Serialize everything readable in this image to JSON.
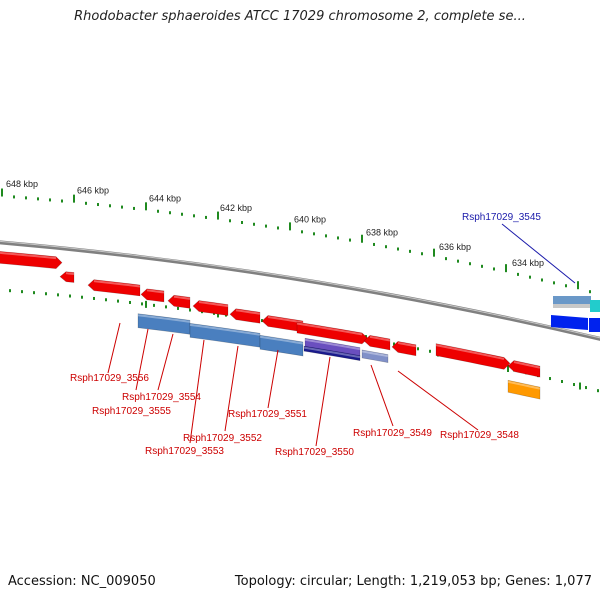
{
  "title": "Rhodobacter sphaeroides ATCC 17029 chromosome 2, complete se...",
  "footer": {
    "accession": "Accession: NC_009050",
    "summary": "Topology: circular; Length: 1,219,053 bp; Genes: 1,077"
  },
  "colors": {
    "ruler_tick": "#1f8a1f",
    "backbone": "#808080",
    "red_gene": "#ee0000",
    "blue_gene": "#4a7fbf",
    "purple_gene": "#6a4fbf",
    "navy_gene": "#1a1a8c",
    "bright_blue_gene": "#0022ee",
    "cyan_gene": "#22cccc",
    "orange_gene": "#ff9900",
    "label_red": "#cc0000",
    "label_blue": "#1a1aaa"
  },
  "ruler_labels": [
    "648 kbp",
    "646 kbp",
    "644 kbp",
    "642 kbp",
    "640 kbp",
    "638 kbp",
    "636 kbp",
    "634 kbp"
  ],
  "gene_labels": {
    "upper": [
      "Rsph17029_3545"
    ],
    "lower": [
      "Rsph17029_3556",
      "Rsph17029_3554",
      "Rsph17029_3555",
      "Rsph17029_3551",
      "Rsph17029_3552",
      "Rsph17029_3553",
      "Rsph17029_3550",
      "Rsph17029_3549",
      "Rsph17029_3548"
    ]
  }
}
